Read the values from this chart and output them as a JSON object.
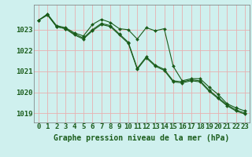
{
  "title": "Graphe pression niveau de la mer (hPa)",
  "background_color": "#cff0ee",
  "grid_color": "#e8b0b0",
  "line_color": "#1a5c1a",
  "hours": [
    0,
    1,
    2,
    3,
    4,
    5,
    6,
    7,
    8,
    9,
    10,
    11,
    12,
    13,
    14,
    15,
    16,
    17,
    18,
    19,
    20,
    21,
    22,
    23
  ],
  "series1": [
    1023.45,
    1023.75,
    1023.2,
    1023.1,
    1022.85,
    1022.7,
    1023.25,
    1023.5,
    1023.35,
    1023.05,
    1023.0,
    1022.55,
    1023.1,
    1022.95,
    1023.05,
    1021.25,
    1020.55,
    1020.65,
    1020.65,
    1020.25,
    1019.9,
    1019.45,
    1019.25,
    1019.1
  ],
  "series2": [
    1023.45,
    1023.7,
    1023.15,
    1023.05,
    1022.8,
    1022.6,
    1023.0,
    1023.3,
    1023.2,
    1022.8,
    1022.4,
    1021.15,
    1021.7,
    1021.3,
    1021.1,
    1020.55,
    1020.5,
    1020.6,
    1020.55,
    1020.1,
    1019.75,
    1019.4,
    1019.15,
    1019.0
  ],
  "series3": [
    1023.45,
    1023.75,
    1023.15,
    1023.05,
    1022.75,
    1022.55,
    1022.95,
    1023.25,
    1023.15,
    1022.75,
    1022.35,
    1021.1,
    1021.65,
    1021.25,
    1021.05,
    1020.5,
    1020.45,
    1020.55,
    1020.5,
    1020.05,
    1019.7,
    1019.35,
    1019.1,
    1018.95
  ],
  "ylim": [
    1018.55,
    1024.2
  ],
  "yticks": [
    1019,
    1020,
    1021,
    1022,
    1023
  ],
  "tick_fontsize": 6.5,
  "title_fontsize": 7.0
}
